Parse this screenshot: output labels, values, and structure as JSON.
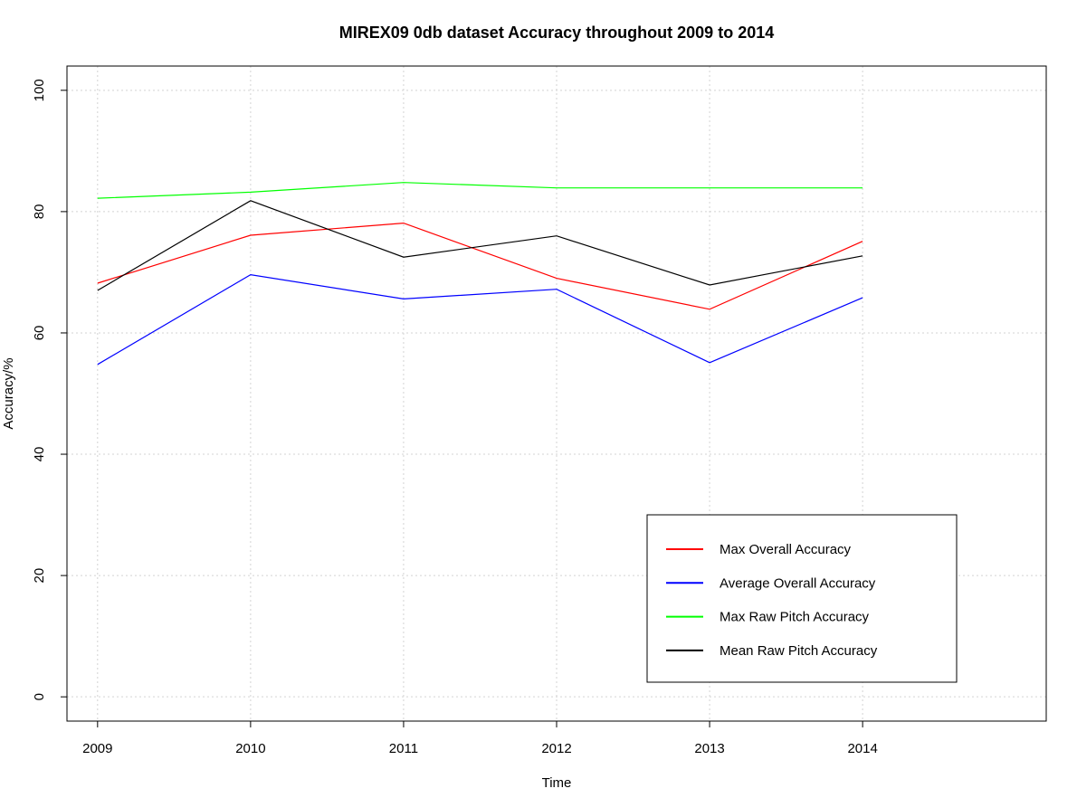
{
  "chart_data": {
    "type": "line",
    "title": "MIREX09 0db dataset Accuracy throughout 2009 to 2014",
    "xlabel": "Time",
    "ylabel": "Accuracy/%",
    "x": [
      2009,
      2010,
      2011,
      2012,
      2013,
      2014
    ],
    "x_tick_labels": [
      "2009",
      "2010",
      "2011",
      "2012",
      "2013",
      "2014"
    ],
    "y_ticks": [
      0,
      20,
      40,
      60,
      80,
      100
    ],
    "y_tick_labels": [
      "0",
      "20",
      "40",
      "60",
      "80",
      "100"
    ],
    "xlim": [
      2008.8,
      2015.2
    ],
    "ylim": [
      -4,
      104
    ],
    "grid": true,
    "legend_position": "bottom-right",
    "series": [
      {
        "name": "Max Overall Accuracy",
        "color": "#ff0000",
        "values": [
          68.2,
          76.1,
          78.1,
          69.0,
          63.9,
          75.1
        ]
      },
      {
        "name": "Average Overall Accuracy",
        "color": "#0000ff",
        "values": [
          54.8,
          69.6,
          65.6,
          67.2,
          55.1,
          65.8
        ]
      },
      {
        "name": "Max Raw Pitch Accuracy",
        "color": "#00ff00",
        "values": [
          82.2,
          83.2,
          84.8,
          83.9,
          83.9,
          83.9
        ]
      },
      {
        "name": "Mean Raw Pitch Accuracy",
        "color": "#000000",
        "values": [
          67.0,
          81.8,
          72.5,
          76.0,
          67.9,
          72.7
        ]
      }
    ]
  }
}
